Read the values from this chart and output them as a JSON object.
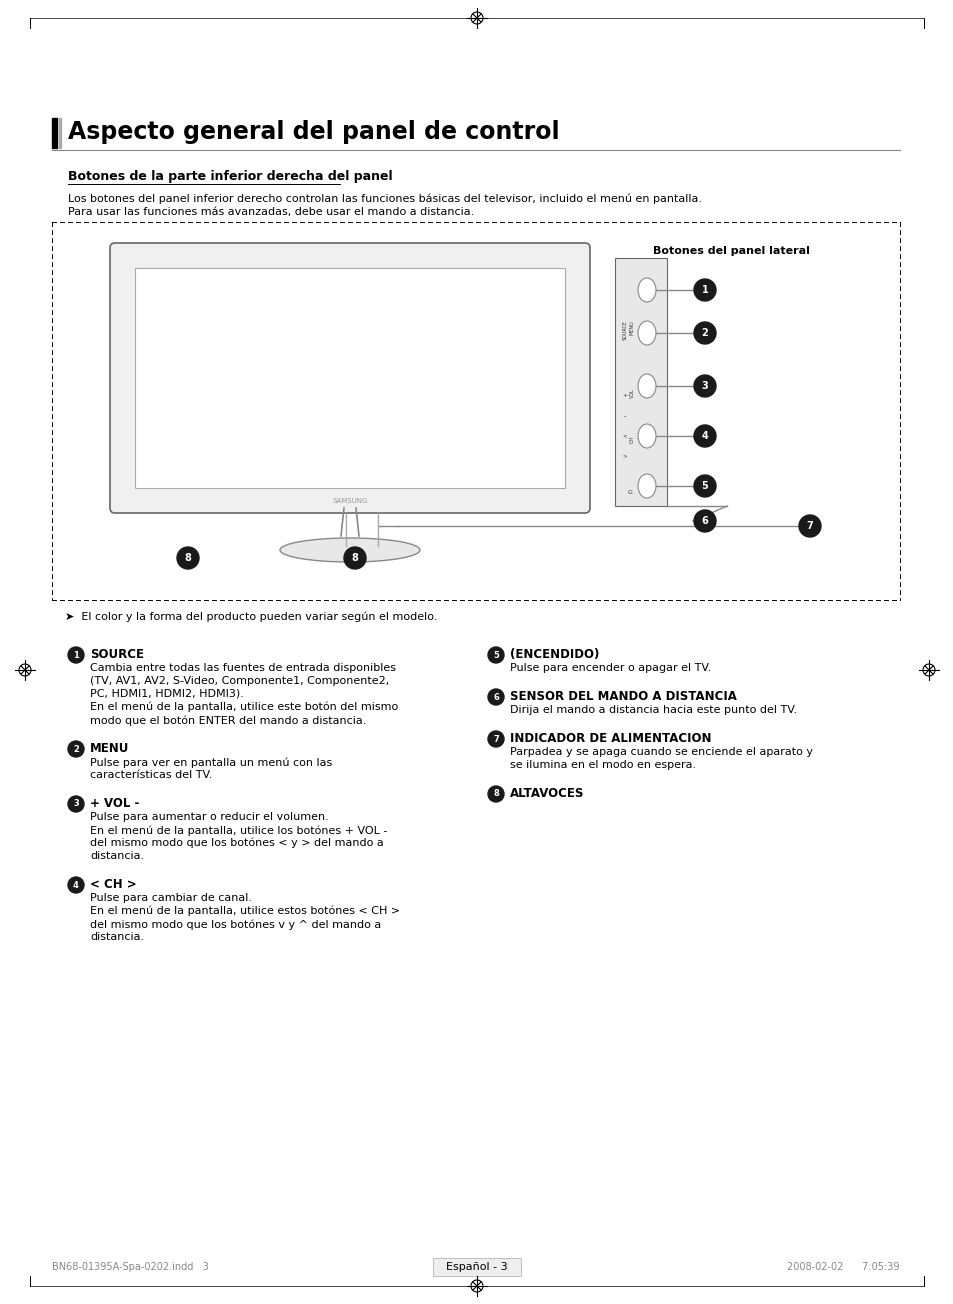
{
  "title": "Aspecto general del panel de control",
  "subtitle_bold": "Botones de la parte inferior derecha del panel",
  "subtitle_text1": "Los botones del panel inferior derecho controlan las funciones básicas del televisor, incluido el menú en pantalla.",
  "subtitle_text2": "Para usar las funciones más avanzadas, debe usar el mando a distancia.",
  "diagram_label": "Botones del panel lateral",
  "note": "➤  El color y la forma del producto pueden variar según el modelo.",
  "items_left": [
    {
      "num": "1",
      "header": "SOURCE",
      "body": "Cambia entre todas las fuentes de entrada disponibles\n(TV, AV1, AV2, S-Video, Componente1, Componente2,\nPC, HDMI1, HDMI2, HDMI3).\nEn el menú de la pantalla, utilice este botón del mismo\nmodo que el botón ENTER del mando a distancia."
    },
    {
      "num": "2",
      "header": "MENU",
      "body": "Pulse para ver en pantalla un menú con las\ncaracterísticas del TV."
    },
    {
      "num": "3",
      "header": "+ VOL -",
      "body": "Pulse para aumentar o reducir el volumen.\nEn el menú de la pantalla, utilice los botónes + VOL -\ndel mismo modo que los botónes < y > del mando a\ndistancia."
    },
    {
      "num": "4",
      "header": "< CH >",
      "body": "Pulse para cambiar de canal.\nEn el menú de la pantalla, utilice estos botónes < CH >\ndel mismo modo que los botónes v y ^ del mando a\ndistancia."
    }
  ],
  "items_right": [
    {
      "num": "5",
      "header": "(ENCENDIDO)",
      "body": "Pulse para encender o apagar el TV."
    },
    {
      "num": "6",
      "header": "SENSOR DEL MANDO A DISTANCIA",
      "body": "Dirija el mando a distancia hacia este punto del TV."
    },
    {
      "num": "7",
      "header": "INDICADOR DE ALIMENTACION",
      "body": "Parpadea y se apaga cuando se enciende el aparato y\nse ilumina en el modo en espera."
    },
    {
      "num": "8",
      "header": "ALTAVOCES",
      "body": ""
    }
  ],
  "footer_left": "BN68-01395A-Spa-0202.indd   3",
  "footer_right": "2008-02-02      7:05:39",
  "footer_center": "Español - 3",
  "background": "#ffffff",
  "text_color": "#000000",
  "gray_color": "#888888"
}
